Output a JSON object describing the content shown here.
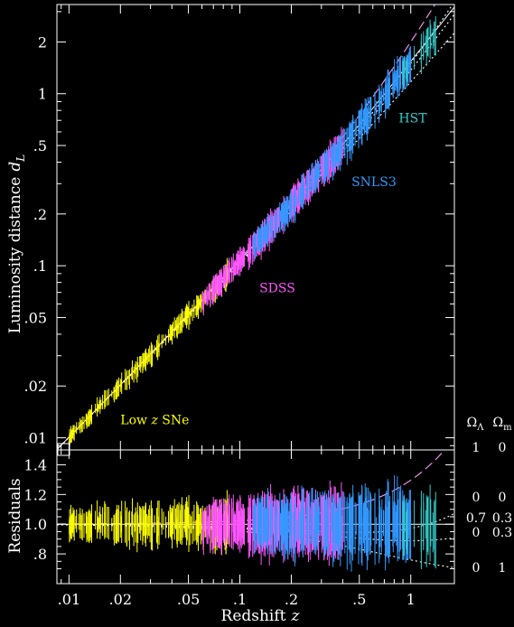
{
  "chart_data": [
    {
      "type": "scatter",
      "panel": "upper",
      "xlabel": "Redshift",
      "xlabel_symbol": "z",
      "ylabel": "Luminosity distance",
      "ylabel_symbol": "d",
      "ylabel_subscript": "L",
      "xscale": "log",
      "yscale": "log",
      "xlim": [
        0.0085,
        1.8
      ],
      "ylim": [
        0.0085,
        3.3
      ],
      "x_ticks": [
        ".01",
        ".02",
        ".05",
        ".1",
        ".2",
        ".5",
        "1"
      ],
      "y_ticks": [
        {
          "value": 0.01,
          "label": ".01"
        },
        {
          "value": 0.02,
          "label": ".02"
        },
        {
          "value": 0.05,
          "label": ".05"
        },
        {
          "value": 0.1,
          "label": ".1"
        },
        {
          "value": 0.2,
          "label": ".2"
        },
        {
          "value": 0.5,
          "label": ".5"
        },
        {
          "value": 1,
          "label": "1"
        },
        {
          "value": 2,
          "label": "2"
        }
      ],
      "series": [
        {
          "name": "Low z SNe",
          "label_text": "Low ",
          "label_italic": "z",
          "label_tail": " SNe",
          "color": "#ffff00",
          "z_range": [
            0.01,
            0.09
          ],
          "label_at": [
            0.02,
            0.012
          ]
        },
        {
          "name": "SDSS",
          "color": "#ff55ff",
          "z_range": [
            0.06,
            0.4
          ],
          "label_at": [
            0.13,
            0.07
          ]
        },
        {
          "name": "SNLS3",
          "color": "#3399ff",
          "z_range": [
            0.12,
            1.0
          ],
          "label_at": [
            0.45,
            0.29
          ]
        },
        {
          "name": "HST",
          "color": "#33cccc",
          "z_range": [
            0.9,
            1.4
          ],
          "label_at": [
            0.85,
            0.68
          ]
        }
      ],
      "models": [
        {
          "omega_lambda": 1,
          "omega_m": 0,
          "style": "dashed",
          "color": "#ff99ff"
        },
        {
          "omega_lambda": 0.7,
          "omega_m": 0.3,
          "style": "solid",
          "color": "#ffffff"
        },
        {
          "omega_lambda": 0,
          "omega_m": 0,
          "style": "dotted",
          "color": "#ffffff"
        },
        {
          "omega_lambda": 0,
          "omega_m": 0.3,
          "style": "dotted",
          "color": "#ffffff"
        },
        {
          "omega_lambda": 0,
          "omega_m": 1,
          "style": "dotted",
          "color": "#ffffff"
        }
      ]
    },
    {
      "type": "scatter",
      "panel": "lower",
      "ylabel": "Residuals",
      "xscale": "log",
      "xlim": [
        0.0085,
        1.8
      ],
      "ylim": [
        0.6,
        1.5
      ],
      "y_ticks": [
        {
          "value": 0.8,
          "label": ".8"
        },
        {
          "value": 1.0,
          "label": "1.0"
        },
        {
          "value": 1.2,
          "label": "1.2"
        },
        {
          "value": 1.4,
          "label": "1.4"
        }
      ],
      "reference": 1.0
    }
  ],
  "model_table": {
    "header_lambda": "Ω",
    "header_lambda_sub": "Λ",
    "header_m": "Ω",
    "header_m_sub": "m",
    "rows": [
      {
        "omega_lambda": "1",
        "omega_m": "0",
        "residual_at_edge": 1.49
      },
      {
        "omega_lambda": "0",
        "omega_m": "0",
        "residual_at_edge": 1.13
      },
      {
        "omega_lambda": "0.7",
        "omega_m": "0.3",
        "residual_at_edge": 1.0
      },
      {
        "omega_lambda": "0",
        "omega_m": "0.3",
        "residual_at_edge": 0.9
      },
      {
        "omega_lambda": "0",
        "omega_m": "1",
        "residual_at_edge": 0.72
      }
    ]
  }
}
